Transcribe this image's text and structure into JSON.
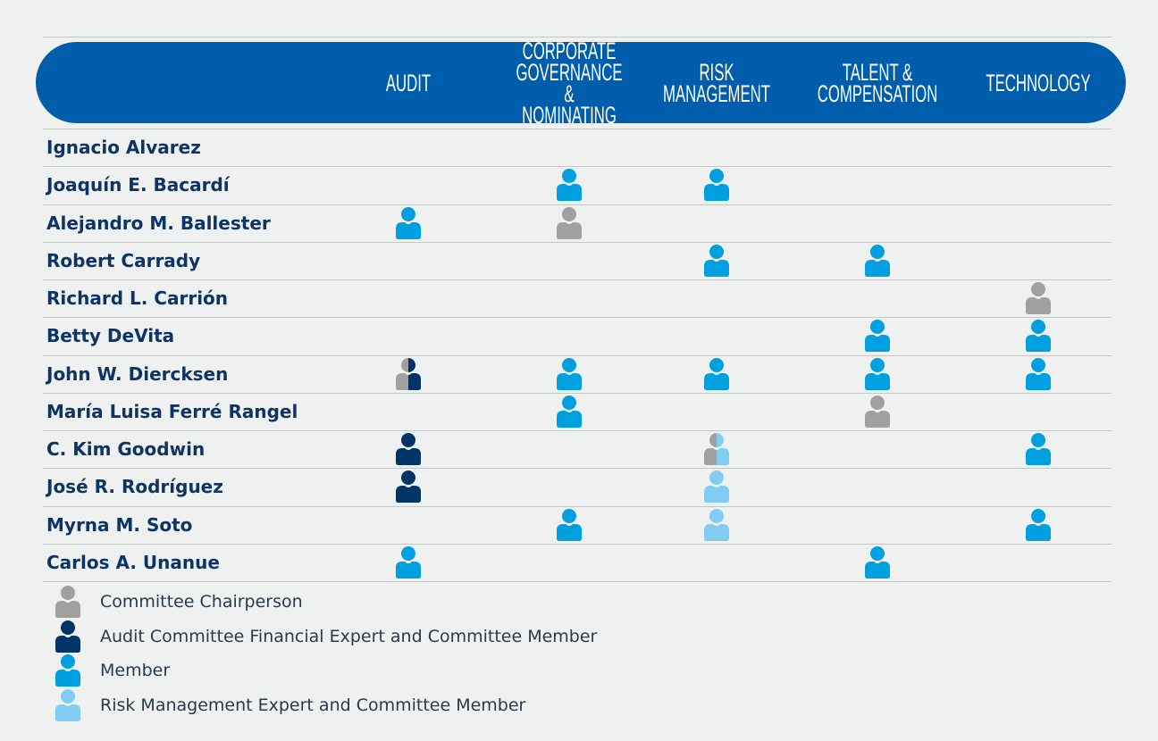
{
  "colors": {
    "chair": "#a0a0a0",
    "expert": "#003366",
    "member": "#009fe0",
    "risk": "#80ccf2",
    "header": "#005dab",
    "name": "#0e3463"
  },
  "columns": [
    "AUDIT",
    "CORPORATE\nGOVERNANCE &\nNOMINATING",
    "RISK\nMANAGEMENT",
    "TALENT &\nCOMPENSATION",
    "TECHNOLOGY"
  ],
  "rows": [
    {
      "name": "Ignacio Alvarez",
      "cells": [
        "",
        "",
        "",
        "",
        ""
      ]
    },
    {
      "name": "Joaquín E. Bacardí",
      "cells": [
        "",
        "member",
        "member",
        "",
        ""
      ]
    },
    {
      "name": "Alejandro M. Ballester",
      "cells": [
        "member",
        "chair",
        "",
        "",
        ""
      ]
    },
    {
      "name": "Robert Carrady",
      "cells": [
        "",
        "",
        "member",
        "member",
        ""
      ]
    },
    {
      "name": "Richard L. Carrión",
      "cells": [
        "",
        "",
        "",
        "",
        "chair"
      ]
    },
    {
      "name": "Betty DeVita",
      "cells": [
        "",
        "",
        "",
        "member",
        "member"
      ]
    },
    {
      "name": "John W. Diercksen",
      "cells": [
        "chair+expert",
        "member",
        "member",
        "member",
        "member"
      ]
    },
    {
      "name": "María Luisa Ferré Rangel",
      "cells": [
        "",
        "member",
        "",
        "chair",
        ""
      ]
    },
    {
      "name": "C. Kim Goodwin",
      "cells": [
        "expert",
        "",
        "chair+risk",
        "",
        "member"
      ]
    },
    {
      "name": "José R. Rodríguez",
      "cells": [
        "expert",
        "",
        "risk",
        "",
        ""
      ]
    },
    {
      "name": "Myrna M. Soto",
      "cells": [
        "",
        "member",
        "risk",
        "",
        "member"
      ]
    },
    {
      "name": "Carlos A. Unanue",
      "cells": [
        "member",
        "",
        "",
        "member",
        ""
      ]
    }
  ],
  "legend": [
    {
      "type": "chair",
      "label": "Committee Chairperson"
    },
    {
      "type": "expert",
      "label": "Audit Committee Financial Expert and Committee Member"
    },
    {
      "type": "member",
      "label": "Member"
    },
    {
      "type": "risk",
      "label": "Risk Management Expert and Committee Member"
    }
  ]
}
